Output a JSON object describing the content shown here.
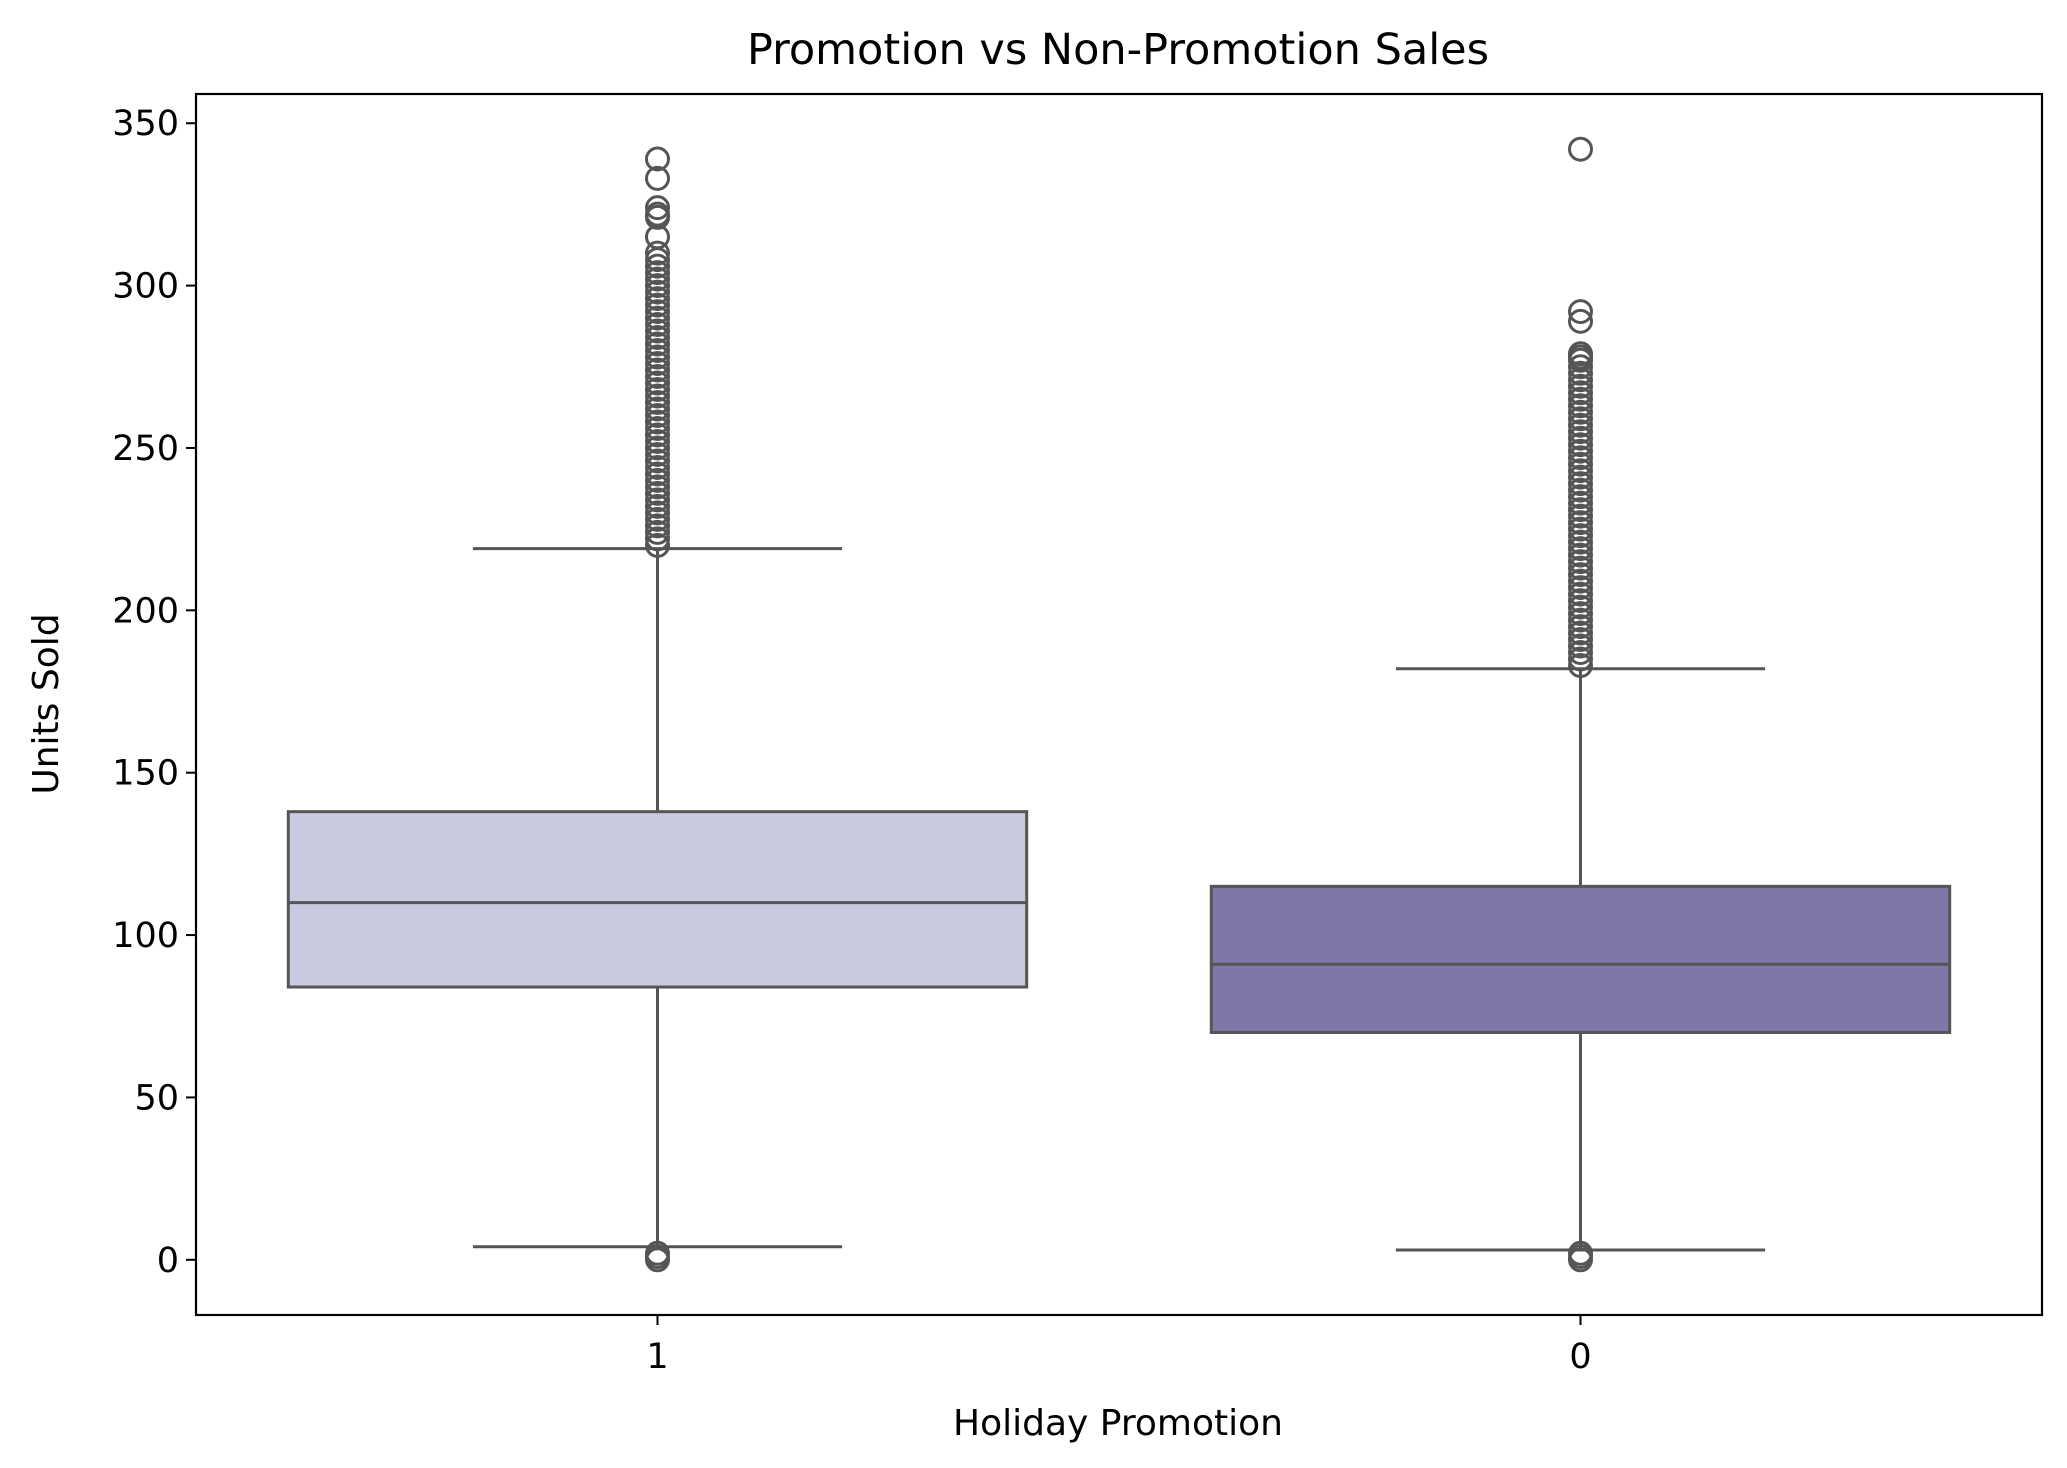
{
  "chart_data": {
    "type": "box",
    "title": "Promotion vs Non-Promotion Sales",
    "xlabel": "Holiday Promotion",
    "ylabel": "Units Sold",
    "ylim": [
      -17,
      359
    ],
    "yticks": [
      0,
      50,
      100,
      150,
      200,
      250,
      300,
      350
    ],
    "grid": false,
    "categories": [
      "1",
      "0"
    ],
    "boxes": [
      {
        "category": "1",
        "color": "#c9cae0",
        "whisker_low": 4,
        "q1": 84,
        "median": 110,
        "q3": 138,
        "whisker_high": 219,
        "outliers": [
          0,
          1,
          2,
          220,
          222,
          224,
          226,
          228,
          230,
          232,
          234,
          236,
          238,
          240,
          242,
          244,
          246,
          248,
          250,
          252,
          254,
          256,
          258,
          260,
          262,
          264,
          266,
          268,
          270,
          272,
          274,
          276,
          278,
          280,
          282,
          284,
          286,
          288,
          290,
          292,
          294,
          296,
          298,
          300,
          302,
          304,
          306,
          308,
          310,
          315,
          321,
          322,
          324,
          333,
          339
        ]
      },
      {
        "category": "0",
        "color": "#7f77a8",
        "whisker_low": 3,
        "q1": 70,
        "median": 91,
        "q3": 115,
        "whisker_high": 182,
        "outliers": [
          0,
          1,
          2,
          183,
          185,
          187,
          189,
          191,
          193,
          195,
          197,
          199,
          201,
          203,
          205,
          207,
          209,
          211,
          213,
          215,
          217,
          219,
          221,
          223,
          225,
          227,
          229,
          231,
          233,
          235,
          237,
          239,
          241,
          243,
          245,
          247,
          249,
          251,
          253,
          255,
          257,
          259,
          261,
          263,
          265,
          267,
          269,
          271,
          273,
          275,
          277,
          278,
          279,
          289,
          292,
          342
        ]
      }
    ],
    "line_color": "#555555"
  }
}
